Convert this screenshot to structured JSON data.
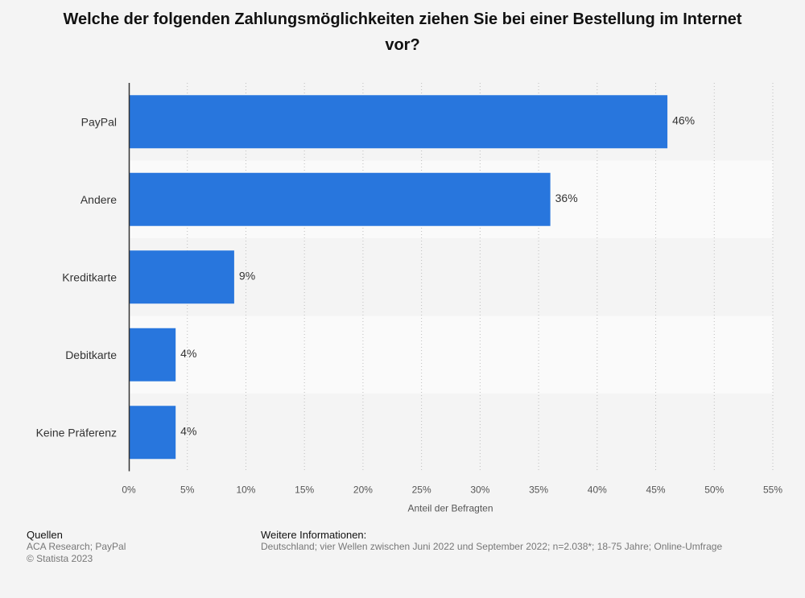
{
  "title": "Welche der folgenden Zahlungsmöglichkeiten ziehen Sie bei einer Bestellung im Internet vor?",
  "chart_data": {
    "type": "bar",
    "orientation": "horizontal",
    "categories": [
      "PayPal",
      "Andere",
      "Kreditkarte",
      "Debitkarte",
      "Keine Präferenz"
    ],
    "values": [
      46,
      36,
      9,
      4,
      4
    ],
    "value_labels": [
      "46%",
      "36%",
      "9%",
      "4%",
      "4%"
    ],
    "xlabel": "Anteil der Befragten",
    "ylabel": "",
    "xlim": [
      0,
      55
    ],
    "ticks": [
      0,
      5,
      10,
      15,
      20,
      25,
      30,
      35,
      40,
      45,
      50,
      55
    ],
    "tick_labels": [
      "0%",
      "5%",
      "10%",
      "15%",
      "20%",
      "25%",
      "30%",
      "35%",
      "40%",
      "45%",
      "50%",
      "55%"
    ],
    "grid": true,
    "bar_color": "#2876dd"
  },
  "footer": {
    "sources_heading": "Quellen",
    "sources_text": "ACA Research; PayPal",
    "copyright": "© Statista 2023",
    "info_heading": "Weitere Informationen:",
    "info_text": "Deutschland; vier Wellen zwischen Juni 2022 und September 2022; n=2.038*; 18-75 Jahre; Online-Umfrage"
  }
}
